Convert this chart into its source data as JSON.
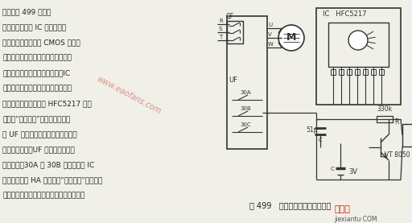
{
  "title": "图 499   变频器固定语言报警电路",
  "bg_color": "#f0efe8",
  "text_color": "#222222",
  "watermark_text": "www.eaofans.com",
  "logo_text1": "接线图",
  "logo_text2": "jiexiantu",
  "logo_suffix": "·COM",
  "fig_width": 5.12,
  "fig_height": 2.77,
  "left_lines": [
    "电路如图 499 所示。",
    "图中的集成电路 IC 是一块固定",
    "语言集成电路，采用 CMOS 工艺制",
    "造，属于大规模集成电路，其内部较",
    "为复杂，通常采用软封装形式。IC",
    "的品牌（型号）颖多，内储的语言是",
    "固定不变的，如图示的 HFC5217 内部",
    "只储有“注意气压”语句。假设变频",
    "器 UF 用于某种与气压有关的装置，",
    "一旦出现报警，UF 工作，其内部继",
    "电器动作，30A 与 30B 闭合，触发 IC",
    "工作，扬声器 HA 便会发出“注意气压”的警告。",
    "有关固定语言集成电路可参阅本书第五章。"
  ]
}
